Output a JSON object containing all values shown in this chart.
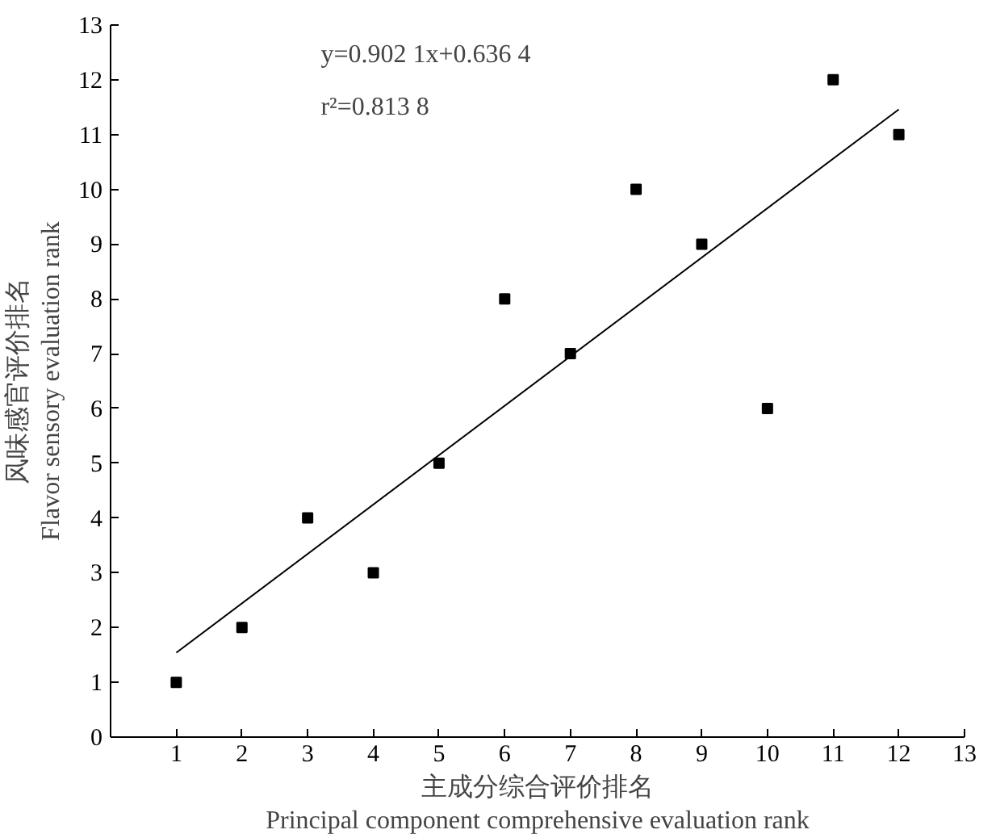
{
  "chart_data": {
    "type": "scatter",
    "xlabel": "主成分综合评价排名\nPrincipal component comprehensive evaluation rank",
    "ylabel": "风味感官评价排名\nFlavor sensory evaluation rank",
    "annotations": [
      "y=0.902 1x+0.636 4",
      "r²=0.813 8"
    ],
    "xlim": [
      0,
      13
    ],
    "xticks": [
      1,
      2,
      3,
      4,
      5,
      6,
      7,
      8,
      9,
      10,
      11,
      12,
      13
    ],
    "ylim": [
      0,
      13
    ],
    "yticks": [
      0,
      1,
      2,
      3,
      4,
      5,
      6,
      7,
      8,
      9,
      10,
      11,
      12,
      13
    ],
    "grid": false,
    "series": [
      {
        "marker": "square",
        "color": "#000000",
        "x": [
          1,
          2,
          3,
          4,
          5,
          6,
          7,
          8,
          9,
          10,
          11,
          12
        ],
        "values": [
          1,
          2,
          4,
          3,
          5,
          8,
          7,
          10,
          9,
          6,
          12,
          11
        ]
      },
      {
        "type": "line",
        "color": "#000000",
        "x": [
          1,
          12
        ],
        "values": [
          1.54,
          11.46
        ]
      }
    ]
  }
}
